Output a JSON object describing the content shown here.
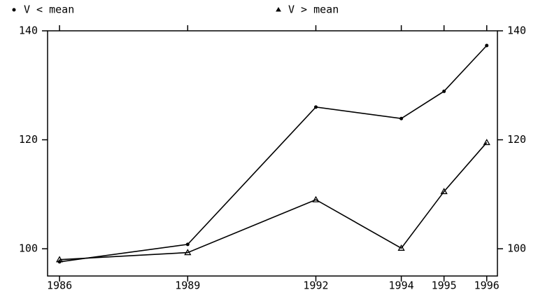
{
  "chart_data": {
    "type": "line",
    "x": [
      1986,
      1989,
      1992,
      1994,
      1995,
      1996
    ],
    "series": [
      {
        "name": "V < mean",
        "color": "#000000",
        "marker": "circle",
        "values": [
          97.6,
          100.8,
          126.0,
          123.9,
          128.9,
          137.3
        ]
      },
      {
        "name": "V > mean",
        "color": "#000000",
        "marker": "triangle",
        "values": [
          98.0,
          99.3,
          109.0,
          100.1,
          110.5,
          119.5
        ]
      }
    ],
    "xlim": [
      1985.72,
      1996.25
    ],
    "xticks": [
      1986,
      1989,
      1992,
      1994,
      1995,
      1996
    ],
    "ylim": [
      95,
      140
    ],
    "yticks": [
      100,
      120,
      140
    ],
    "y2lim": [
      95,
      140
    ],
    "y2ticks": [
      100,
      120,
      140
    ],
    "grid": false
  }
}
